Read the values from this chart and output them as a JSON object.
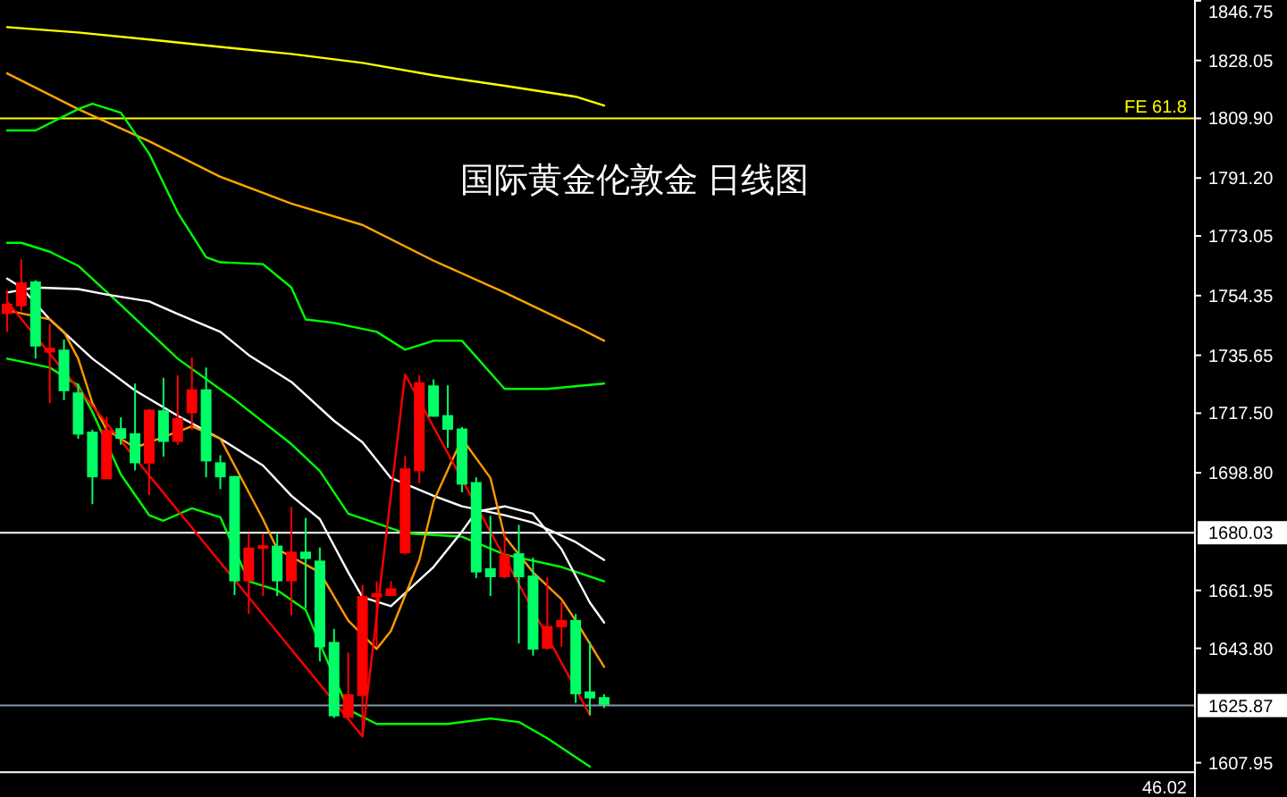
{
  "chart_data": {
    "type": "candlestick",
    "title": "国际黄金伦敦金  日线图",
    "tick_labels": "y",
    "categories": [
      null,
      null,
      null,
      null,
      null,
      null,
      null,
      null,
      null,
      null,
      null,
      null,
      null,
      null,
      null,
      null,
      null,
      null,
      null,
      null,
      null,
      null,
      null,
      null,
      null,
      null,
      null,
      null,
      null,
      null,
      null,
      null,
      null,
      null,
      null,
      null,
      null,
      null,
      null,
      null,
      null,
      null,
      null,
      null,
      null,
      null,
      null,
      null,
      null,
      null,
      null,
      null,
      null,
      null,
      null,
      null,
      null,
      null,
      null,
      null,
      null,
      null,
      null,
      null,
      null,
      null,
      null,
      null,
      null,
      null,
      null,
      null,
      null,
      null,
      null,
      null,
      null,
      null,
      null,
      null,
      null,
      null,
      null,
      null
    ],
    "ohlc": [
      [
        1748.6,
        1756.0,
        1743.0,
        1751.8
      ],
      [
        1751.0,
        1765.7,
        1749.5,
        1758.5
      ],
      [
        1758.8,
        1759.2,
        1734.6,
        1738.4
      ],
      [
        1736.5,
        1745.4,
        1720.7,
        1738.0
      ],
      [
        1737.4,
        1740.6,
        1721.6,
        1724.4
      ],
      [
        1724.0,
        1726.8,
        1709.5,
        1710.8
      ],
      [
        1711.7,
        1712.3,
        1689.0,
        1697.4
      ],
      [
        1696.8,
        1716.4,
        1696.8,
        1712.3
      ],
      [
        1712.8,
        1716.2,
        1707.6,
        1709.5
      ],
      [
        1711.2,
        1726.8,
        1699.6,
        1701.8
      ],
      [
        1701.7,
        1718.8,
        1691.8,
        1718.6
      ],
      [
        1718.4,
        1728.6,
        1703.9,
        1708.5
      ],
      [
        1708.5,
        1729.4,
        1707.6,
        1716.0
      ],
      [
        1717.5,
        1735.0,
        1712.3,
        1725.0
      ],
      [
        1725.0,
        1731.8,
        1697.4,
        1702.4
      ],
      [
        1702.1,
        1704.3,
        1693.7,
        1697.4
      ],
      [
        1697.8,
        1697.8,
        1660.5,
        1664.8
      ],
      [
        1664.8,
        1679.7,
        1654.6,
        1675.4
      ],
      [
        1675.0,
        1679.7,
        1660.2,
        1676.1
      ],
      [
        1676.0,
        1679.7,
        1660.2,
        1664.8
      ],
      [
        1664.8,
        1688.1,
        1654.2,
        1674.1
      ],
      [
        1674.1,
        1684.7,
        1656.4,
        1671.8
      ],
      [
        1671.3,
        1675.4,
        1639.7,
        1644.1
      ],
      [
        1645.8,
        1649.9,
        1622.0,
        1622.5
      ],
      [
        1622.0,
        1642.5,
        1622.0,
        1629.4
      ],
      [
        1628.9,
        1663.7,
        1616.2,
        1660.2
      ],
      [
        1659.8,
        1664.8,
        1644.3,
        1661.1
      ],
      [
        1660.2,
        1664.8,
        1660.2,
        1662.6
      ],
      [
        1673.6,
        1704.0,
        1673.2,
        1700.2
      ],
      [
        1699.3,
        1729.4,
        1695.5,
        1727.2
      ],
      [
        1726.2,
        1728.1,
        1716.4,
        1716.4
      ],
      [
        1716.9,
        1726.2,
        1706.7,
        1712.3
      ],
      [
        1712.7,
        1713.2,
        1692.7,
        1695.1
      ],
      [
        1695.9,
        1697.4,
        1665.8,
        1667.6
      ],
      [
        1668.9,
        1685.3,
        1660.2,
        1666.1
      ],
      [
        1666.1,
        1679.9,
        1665.8,
        1673.2
      ],
      [
        1673.6,
        1682.5,
        1645.3,
        1666.1
      ],
      [
        1666.6,
        1672.2,
        1641.5,
        1643.4
      ],
      [
        1643.7,
        1666.1,
        1643.4,
        1650.8
      ],
      [
        1650.4,
        1658.3,
        1644.3,
        1652.7
      ],
      [
        1652.7,
        1654.6,
        1626.7,
        1629.4
      ],
      [
        1630.3,
        1645.8,
        1622.9,
        1628.1
      ],
      [
        1628.5,
        1629.4,
        1625.1,
        1626.1
      ],
      null,
      null,
      null,
      null,
      null,
      null,
      null,
      null,
      null,
      null,
      null,
      null,
      null,
      null,
      null,
      null,
      null,
      null,
      null,
      null,
      null,
      null,
      null,
      null,
      null,
      null,
      null,
      null,
      null,
      null,
      null,
      null,
      null,
      null,
      null,
      null,
      null,
      null,
      null,
      null,
      null
    ],
    "colors": [
      "#ff0000",
      "#ff0000",
      "#00ff66",
      "#ff0000",
      "#00ff66",
      "#00ff66",
      "#00ff66",
      "#ff0000",
      "#00ff66",
      "#00ff66",
      "#ff0000",
      "#00ff66",
      "#ff0000",
      "#ff0000",
      "#00ff66",
      "#00ff66",
      "#00ff66",
      "#ff0000",
      "#ff0000",
      "#00ff66",
      "#ff0000",
      "#00ff66",
      "#00ff66",
      "#00ff66",
      "#ff0000",
      "#ff0000",
      "#ff0000",
      "#ff0000",
      "#ff0000",
      "#ff0000",
      "#00ff66",
      "#00ff66",
      "#00ff66",
      "#00ff66",
      "#00ff66",
      "#ff0000",
      "#00ff66",
      "#00ff66",
      "#ff0000",
      "#ff0000",
      "#00ff66",
      "#00ff66",
      "#00ff66",
      null,
      null,
      null,
      null,
      null,
      null,
      null,
      null,
      null,
      null,
      null,
      null,
      null,
      null,
      null,
      null,
      null,
      null,
      null,
      null,
      null,
      null,
      null,
      null,
      null,
      null,
      null,
      null,
      null,
      null,
      null,
      null,
      null,
      null,
      null,
      null,
      null,
      null,
      null,
      null,
      null
    ],
    "series": [
      {
        "type": "line",
        "color": "#ffff00",
        "values": [
          1838.5,
          null,
          null,
          null,
          null,
          1836.8,
          null,
          null,
          null,
          null,
          1834.6,
          null,
          null,
          null,
          null,
          1832.3,
          null,
          null,
          null,
          null,
          1830.1,
          null,
          null,
          null,
          null,
          1827.3,
          null,
          null,
          null,
          null,
          1823.4,
          null,
          null,
          null,
          null,
          1820.1,
          null,
          null,
          null,
          null,
          1816.7,
          null,
          1813.9,
          null,
          null,
          null,
          null,
          null,
          null,
          null,
          null,
          null,
          null,
          null,
          null,
          null,
          null,
          null,
          null,
          null,
          null,
          null,
          null,
          null,
          null,
          null,
          null,
          null,
          null,
          null,
          null,
          null,
          null,
          null,
          null,
          null,
          null,
          null,
          null,
          null,
          null,
          null,
          null,
          null
        ]
      },
      {
        "type": "line",
        "color": "#ffa500",
        "values": [
          1824.0,
          null,
          null,
          null,
          null,
          1812.8,
          null,
          null,
          null,
          null,
          1802.7,
          null,
          null,
          null,
          null,
          1791.6,
          null,
          null,
          null,
          null,
          1783.2,
          null,
          null,
          null,
          null,
          1776.5,
          null,
          null,
          null,
          null,
          1765.3,
          null,
          null,
          null,
          null,
          1755.3,
          null,
          null,
          null,
          null,
          1744.7,
          null,
          1740.2,
          null,
          null,
          null,
          null,
          null,
          null,
          null,
          null,
          null,
          null,
          null,
          null,
          null,
          null,
          null,
          null,
          null,
          null,
          null,
          null,
          null,
          null,
          null,
          null,
          null,
          null,
          null,
          null,
          null,
          null,
          null,
          null,
          null,
          null,
          null,
          null,
          null,
          null,
          null,
          null,
          null
        ]
      },
      {
        "type": "line",
        "color": "#00ff00",
        "values": [
          1806.1,
          null,
          1806.1,
          null,
          null,
          1812.8,
          1814.5,
          null,
          1811.7,
          null,
          1798.8,
          null,
          1780.4,
          null,
          1766.4,
          1764.8,
          null,
          null,
          1764.2,
          null,
          1756.9,
          1746.9,
          null,
          1745.8,
          null,
          null,
          1743.0,
          null,
          1737.4,
          null,
          1740.2,
          null,
          1740.2,
          null,
          null,
          1725.1,
          null,
          null,
          1725.1,
          null,
          null,
          null,
          1726.8,
          null,
          null,
          null,
          null,
          null,
          null,
          null,
          null,
          null,
          null,
          null,
          null,
          null,
          null,
          null,
          null,
          null,
          null,
          null,
          null,
          null,
          null,
          null,
          null,
          null,
          null,
          null,
          null,
          null,
          null,
          null,
          null,
          null,
          null,
          null,
          null,
          null,
          null,
          null,
          null,
          null
        ]
      },
      {
        "type": "line",
        "color": "#00ff00",
        "values": [
          1770.9,
          1770.9,
          null,
          1768.1,
          null,
          1763.7,
          null,
          null,
          1751.4,
          null,
          null,
          null,
          1734.6,
          null,
          null,
          null,
          1721.8,
          null,
          null,
          null,
          1707.8,
          null,
          1699.4,
          null,
          1686.0,
          null,
          null,
          null,
          1679.9,
          null,
          null,
          null,
          1678.8,
          null,
          null,
          1673.2,
          null,
          null,
          null,
          1669.3,
          null,
          null,
          1664.8,
          null,
          null,
          null,
          null,
          null,
          null,
          null,
          null,
          null,
          null,
          null,
          null,
          null,
          null,
          null,
          null,
          null,
          null,
          null,
          null,
          null,
          null,
          null,
          null,
          null,
          null,
          null,
          null,
          null,
          null,
          null,
          null,
          null,
          null,
          null,
          null,
          null,
          null,
          null,
          null,
          null
        ]
      },
      {
        "type": "line",
        "color": "#00ff00",
        "values": [
          1734.6,
          null,
          null,
          1731.8,
          null,
          1726.2,
          1717.9,
          null,
          1698.3,
          null,
          1685.5,
          1683.8,
          null,
          1687.7,
          null,
          1684.9,
          null,
          1664.8,
          null,
          1662.0,
          null,
          1655.9,
          1645.3,
          null,
          1624.6,
          null,
          1620.1,
          null,
          null,
          null,
          null,
          1620.1,
          null,
          null,
          1621.8,
          null,
          1620.7,
          null,
          1615.6,
          null,
          null,
          1606.7,
          null,
          null,
          null,
          null,
          null,
          null,
          null,
          null,
          null,
          null,
          null,
          null,
          null,
          null,
          null,
          null,
          null,
          null,
          null,
          null,
          null,
          null,
          null,
          null,
          null,
          null,
          null,
          null,
          null,
          null,
          null,
          null,
          null,
          null,
          null,
          null,
          null,
          null,
          null,
          null,
          null,
          null
        ]
      },
      {
        "type": "line",
        "color": "#ffffff",
        "values": [
          1755.3,
          null,
          1756.9,
          null,
          null,
          1756.4,
          null,
          1754.7,
          null,
          null,
          1752.5,
          null,
          1748.6,
          null,
          null,
          1743.0,
          null,
          1735.7,
          null,
          null,
          1727.3,
          null,
          null,
          1715.1,
          null,
          1708.4,
          null,
          1697.2,
          null,
          null,
          1691.6,
          null,
          1688.3,
          null,
          null,
          1685.5,
          null,
          1683.2,
          null,
          null,
          1677.1,
          null,
          1671.5,
          null,
          null,
          null,
          null,
          null,
          null,
          null,
          null,
          null,
          null,
          null,
          null,
          null,
          null,
          null,
          null,
          null,
          null,
          null,
          null,
          null,
          null,
          null,
          null,
          null,
          null,
          null,
          null,
          null,
          null,
          null,
          null,
          null,
          null,
          null,
          null,
          null,
          null,
          null,
          null,
          null
        ]
      },
      {
        "type": "line",
        "color": "#ffffff",
        "values": [
          1759.7,
          1756.9,
          null,
          1746.9,
          null,
          null,
          1734.6,
          null,
          null,
          1724.6,
          null,
          null,
          1716.7,
          null,
          null,
          1709.5,
          null,
          null,
          1701.1,
          null,
          1691.6,
          null,
          1684.3,
          null,
          1667.6,
          1659.8,
          null,
          1657.0,
          null,
          null,
          1669.3,
          null,
          1680.4,
          1686.6,
          null,
          1688.3,
          null,
          1686.0,
          null,
          1674.9,
          null,
          1658.1,
          1651.9,
          null,
          null,
          null,
          null,
          null,
          null,
          null,
          null,
          null,
          null,
          null,
          null,
          null,
          null,
          null,
          null,
          null,
          null,
          null,
          null,
          null,
          null,
          null,
          null,
          null,
          null,
          null,
          null,
          null,
          null,
          null,
          null,
          null,
          null,
          null,
          null,
          null,
          null,
          null,
          null,
          null
        ]
      },
      {
        "type": "line",
        "color": "#ff9900",
        "values": [
          1749.7,
          null,
          null,
          1746.9,
          1743.0,
          1734.6,
          1720.7,
          1712.3,
          null,
          1706.7,
          null,
          1710.0,
          null,
          1713.4,
          null,
          1709.5,
          1701.1,
          null,
          1684.3,
          1674.9,
          null,
          null,
          1667.6,
          null,
          1652.5,
          null,
          1643.6,
          1649.2,
          null,
          1671.5,
          1689.9,
          null,
          1709.5,
          null,
          1697.2,
          1678.8,
          null,
          1667.6,
          null,
          1659.2,
          1652.5,
          null,
          1638.0,
          null,
          null,
          null,
          null,
          null,
          null,
          null,
          null,
          null,
          null,
          null,
          null,
          null,
          null,
          null,
          null,
          null,
          null,
          null,
          null,
          null,
          null,
          null,
          null,
          null,
          null,
          null,
          null,
          null,
          null,
          null,
          null,
          null,
          null,
          null,
          null,
          null,
          null,
          null,
          null,
          null
        ]
      },
      {
        "type": "line",
        "color": "#ff0000",
        "values": [
          1752.5,
          null,
          null,
          null,
          null,
          null,
          null,
          null,
          null,
          null,
          null,
          null,
          null,
          null,
          null,
          null,
          null,
          null,
          null,
          null,
          null,
          null,
          null,
          null,
          null,
          1616.2,
          null,
          null,
          1729.6,
          null,
          null,
          null,
          null,
          null,
          null,
          null,
          null,
          null,
          null,
          null,
          null,
          1622.9,
          null,
          null,
          null,
          null,
          null,
          null,
          null,
          null,
          null,
          null,
          null,
          null,
          null,
          null,
          null,
          null,
          null,
          null,
          null,
          null,
          null,
          null,
          null,
          null,
          null,
          null,
          null,
          null,
          null,
          null,
          null,
          null,
          null,
          null,
          null,
          null,
          null,
          null,
          null,
          null,
          null,
          null
        ]
      }
    ],
    "ylim": [
      1597.2,
      1847.0
    ],
    "yticks": [
      1846.75,
      1828.05,
      {
        "value": 1809.9,
        "label": "1809.90"
      },
      {
        "value": 1791.2,
        "label": "1791.20"
      },
      1773.05,
      1754.35,
      1735.65,
      {
        "value": 1717.5,
        "label": "1717.50"
      },
      {
        "value": 1698.8,
        "label": "1698.80"
      },
      1661.95,
      {
        "value": 1643.8,
        "label": "1643.80"
      },
      1607.95
    ],
    "ref_lines": [
      {
        "axis": "y",
        "value": 1809.9,
        "label": "FE 61.8",
        "color": "#ffff00"
      },
      {
        "axis": "y",
        "value": 1680.03,
        "label": "1680.03",
        "color": "#ffffff"
      },
      {
        "axis": "y",
        "value": 1625.87,
        "label": "1625.87",
        "color": "#8899aa"
      },
      {
        "axis": "y",
        "value": 1605.0,
        "color": "#ffffff"
      }
    ],
    "annotations": [
      "46.02"
    ]
  }
}
